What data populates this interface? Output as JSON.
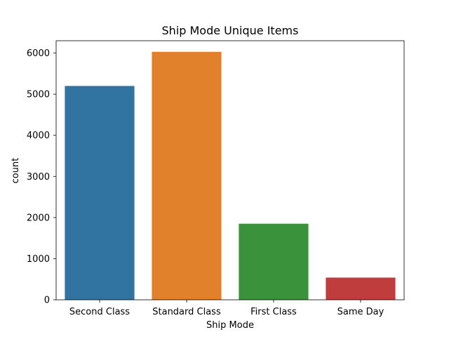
{
  "chart_data": {
    "type": "bar",
    "title": "Ship Mode Unique Items",
    "xlabel": "Ship Mode",
    "ylabel": "count",
    "categories": [
      "Second Class",
      "Standard Class",
      "First Class",
      "Same Day"
    ],
    "values": [
      5200,
      6030,
      1850,
      540
    ],
    "colors": [
      "#3274a1",
      "#e1812c",
      "#3a923a",
      "#c03d3e"
    ],
    "ylim": [
      0,
      6300
    ],
    "yticks": [
      0,
      1000,
      2000,
      3000,
      4000,
      5000,
      6000
    ],
    "ytick_labels": [
      "0",
      "1000",
      "2000",
      "3000",
      "4000",
      "5000",
      "6000"
    ],
    "grid": false,
    "legend": "none"
  }
}
